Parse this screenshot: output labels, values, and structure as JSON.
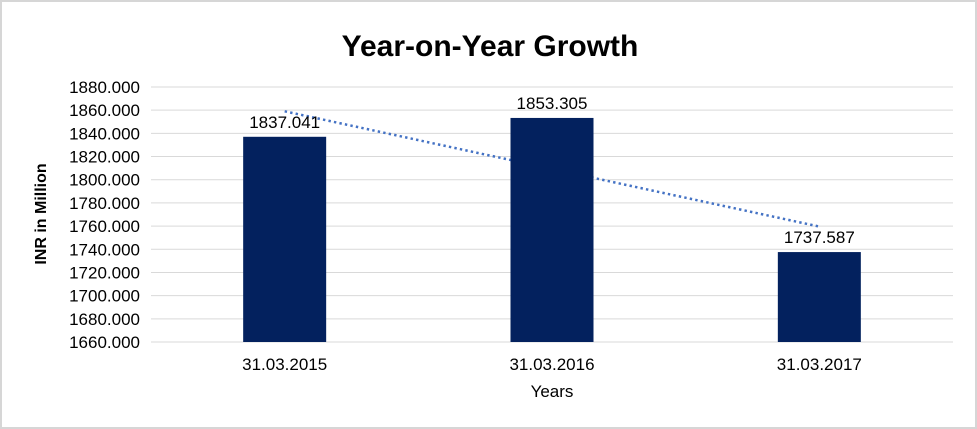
{
  "window": {
    "background": "#FFFFFF",
    "frame_border_color": "#D6D6D6"
  },
  "chart_data": {
    "type": "bar",
    "title": "Year-on-Year Growth",
    "categories": [
      "31.03.2015",
      "31.03.2016",
      "31.03.2017"
    ],
    "values": [
      1837.041,
      1853.305,
      1737.587
    ],
    "data_labels": [
      "1837.041",
      "1853.305",
      "1737.587"
    ],
    "xlabel": "Years",
    "ylabel": "INR in Million",
    "ylim": [
      1660,
      1880
    ],
    "ytick_step": 20,
    "ytick_labels": [
      "1660.000",
      "1680.000",
      "1700.000",
      "1720.000",
      "1740.000",
      "1760.000",
      "1780.000",
      "1800.000",
      "1820.000",
      "1840.000",
      "1860.000",
      "1880.000"
    ],
    "grid": true,
    "legend": "none",
    "bar_color": "#03215E",
    "gridline_color": "#D9D9D9",
    "text_color": "#000000",
    "trendline": {
      "type": "linear",
      "style": "dotted",
      "color": "#4472C4",
      "drawn_behind_bars": true
    }
  }
}
